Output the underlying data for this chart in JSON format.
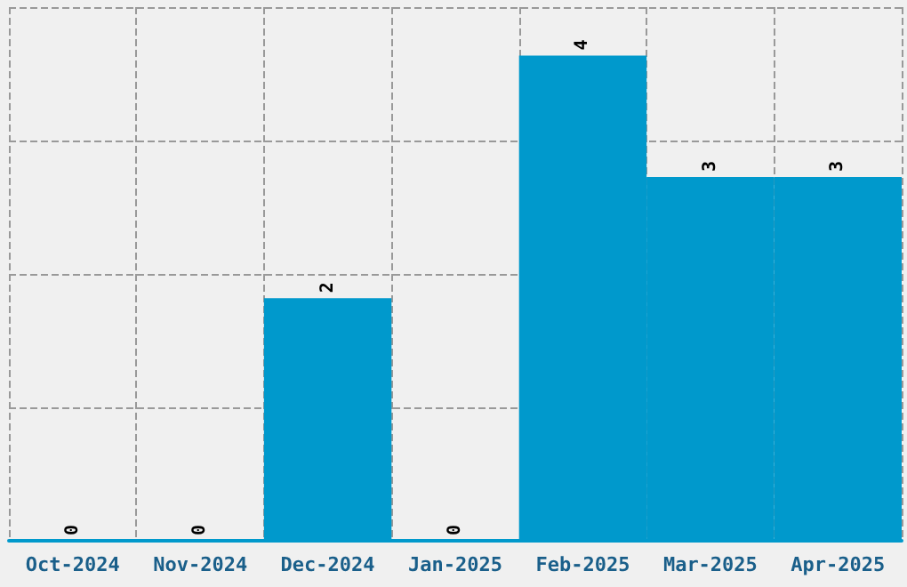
{
  "chart_data": {
    "type": "bar",
    "categories": [
      "Oct-2024",
      "Nov-2024",
      "Dec-2024",
      "Jan-2025",
      "Feb-2025",
      "Mar-2025",
      "Apr-2025"
    ],
    "values": [
      0,
      0,
      2,
      0,
      4,
      3,
      3
    ],
    "color": "#0099cc",
    "data_labels": true,
    "grid": true,
    "ylim": [
      0,
      4.4
    ],
    "yticks": [
      {
        "value": 0,
        "label": null
      },
      {
        "value": 1.1,
        "label": null
      },
      {
        "value": 2.2,
        "label": null
      },
      {
        "value": 3.3,
        "label": null
      },
      {
        "value": 4.4,
        "label": null
      }
    ],
    "tick_labels": "x"
  }
}
